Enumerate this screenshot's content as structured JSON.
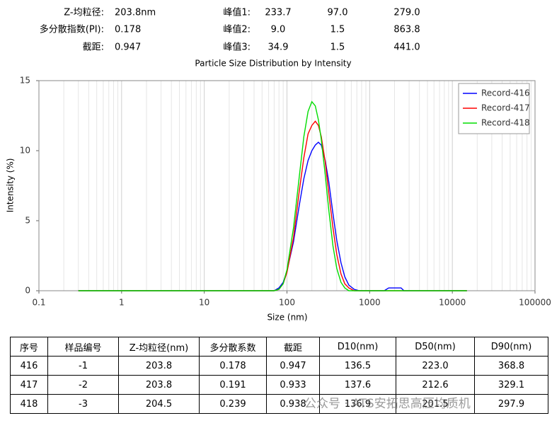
{
  "header": {
    "rows": [
      {
        "label": "Z-均粒径:",
        "value": "203.8nm",
        "peak_label": "峰值1:",
        "peak_values": [
          "233.7",
          "97.0",
          "279.0"
        ]
      },
      {
        "label": "多分散指数(PI):",
        "value": "0.178",
        "peak_label": "峰值2:",
        "peak_values": [
          "9.0",
          "1.5",
          "863.8"
        ]
      },
      {
        "label": "截距:",
        "value": "0.947",
        "peak_label": "峰值3:",
        "peak_values": [
          "34.9",
          "1.5",
          "441.0"
        ]
      }
    ]
  },
  "chart_data": {
    "type": "line",
    "title": "Particle Size Distribution by Intensity",
    "x_label": "Size (nm)",
    "y_label": "Intensity (%)",
    "xscale": "log",
    "xlim": [
      0.1,
      100000
    ],
    "xticks": [
      0.1,
      1,
      10,
      100,
      1000,
      10000,
      100000
    ],
    "ylim": [
      0,
      15
    ],
    "yticks": [
      0,
      5,
      10,
      15
    ],
    "grid": true,
    "legend": "upper right",
    "x": [
      0.3,
      70,
      80,
      90,
      100,
      120,
      140,
      160,
      180,
      200,
      220,
      240,
      260,
      290,
      320,
      360,
      400,
      450,
      500,
      560,
      650,
      750,
      900,
      1500,
      1700,
      1800,
      2400,
      2600,
      15000
    ],
    "series": [
      {
        "name": "Record-416",
        "color": "#0000ff",
        "values": [
          0,
          0,
          0.2,
          0.6,
          1.4,
          3.5,
          6,
          8,
          9.3,
          10,
          10.4,
          10.6,
          10.4,
          9.3,
          7.8,
          5.5,
          3.6,
          2,
          1,
          0.4,
          0.1,
          0,
          0,
          0,
          0.2,
          0.2,
          0.2,
          0,
          0
        ]
      },
      {
        "name": "Record-417",
        "color": "#ff0000",
        "values": [
          0,
          0,
          0.1,
          0.5,
          1.3,
          3.8,
          7,
          9.5,
          11.2,
          11.8,
          12.1,
          11.8,
          11,
          9.2,
          7,
          4.5,
          2.6,
          1.2,
          0.5,
          0.2,
          0,
          0,
          0,
          0,
          0,
          0,
          0,
          0,
          0
        ]
      },
      {
        "name": "Record-418",
        "color": "#00dd00",
        "values": [
          0,
          0,
          0.1,
          0.5,
          1.5,
          4.5,
          8,
          11,
          12.8,
          13.5,
          13.2,
          12.2,
          10.8,
          8.3,
          5.8,
          3.2,
          1.6,
          0.6,
          0.2,
          0,
          0,
          0,
          0,
          0,
          0,
          0,
          0,
          0,
          0
        ]
      }
    ]
  },
  "table": {
    "header": [
      "序号",
      "样品编号",
      "Z-均粒径(nm)",
      "多分散系数",
      "截距",
      "D10(nm)",
      "D50(nm)",
      "D90(nm)"
    ],
    "rows": [
      [
        "416",
        "-1",
        "203.8",
        "0.178",
        "0.947",
        "136.5",
        "223.0",
        "368.8"
      ],
      [
        "417",
        "-2",
        "203.8",
        "0.191",
        "0.933",
        "137.6",
        "212.6",
        "329.1"
      ],
      [
        "418",
        "-3",
        "204.5",
        "0.239",
        "0.938",
        "136.9",
        "201.5",
        "297.9"
      ]
    ]
  },
  "watermark": "公众号 · ATS安拓思高压均质机"
}
